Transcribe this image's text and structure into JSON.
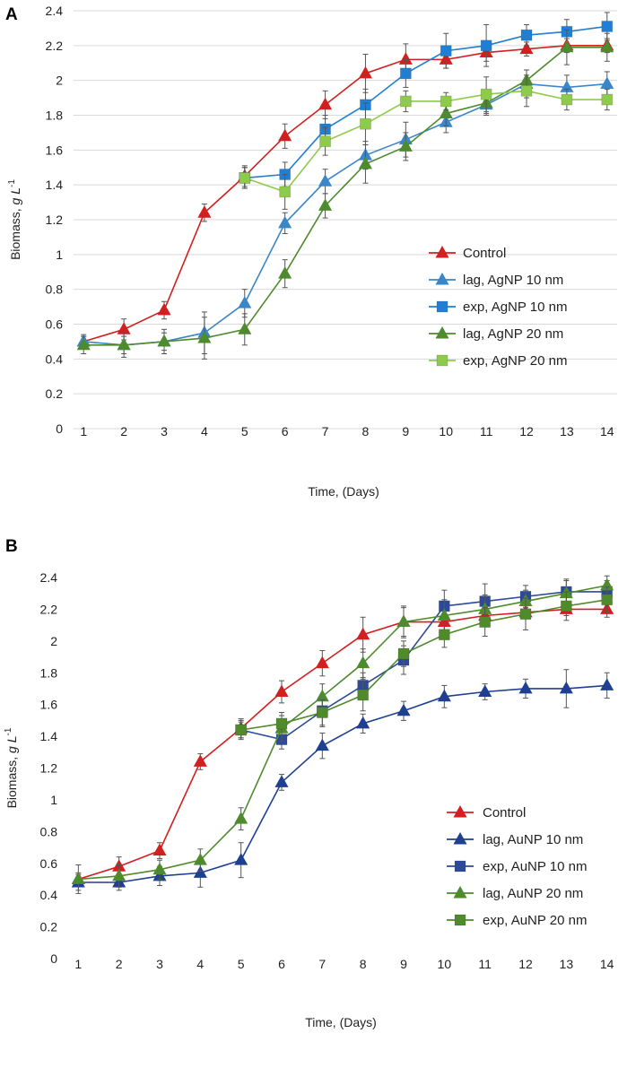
{
  "chart_data": [
    {
      "panel": "A",
      "type": "line",
      "xlabel": "Time, (Days)",
      "ylabel": "Biomass, g L-1",
      "ylabel_main": "Biomass, ",
      "ylabel_unit": "g L",
      "ylabel_exp": "-1",
      "ylim": [
        0,
        2.4
      ],
      "ystep": 0.2,
      "yticks": [
        "0",
        "0.2",
        "0.4",
        "0.6",
        "0.8",
        "1",
        "1.2",
        "1.4",
        "1.6",
        "1.8",
        "2",
        "2.2",
        "2.4"
      ],
      "xticks": [
        "1",
        "2",
        "3",
        "4",
        "5",
        "6",
        "7",
        "8",
        "9",
        "10",
        "11",
        "12",
        "13",
        "14"
      ],
      "grid": "horizontal",
      "legend_position": "right",
      "series": [
        {
          "name": "Control",
          "color": "#d21f1f",
          "marker": "triangle",
          "x": [
            1,
            2,
            3,
            4,
            5,
            6,
            7,
            8,
            9,
            10,
            11,
            12,
            13,
            14
          ],
          "values": [
            0.5,
            0.57,
            0.68,
            1.24,
            1.45,
            1.68,
            1.86,
            2.04,
            2.12,
            2.12,
            2.16,
            2.18,
            2.2,
            2.2
          ],
          "err": [
            0.04,
            0.06,
            0.05,
            0.05,
            0.06,
            0.07,
            0.08,
            0.11,
            0.09,
            0.05,
            0.05,
            0.04,
            0.04,
            0.04
          ]
        },
        {
          "name": "lag, AgNP 10 nm",
          "color": "#3a86c8",
          "marker": "triangle",
          "x": [
            1,
            2,
            3,
            4,
            5,
            6,
            7,
            8,
            9,
            10,
            11,
            12,
            13,
            14
          ],
          "values": [
            0.5,
            0.48,
            0.5,
            0.55,
            0.72,
            1.18,
            1.42,
            1.57,
            1.66,
            1.76,
            1.86,
            1.98,
            1.96,
            1.98
          ],
          "err": [
            0.03,
            0.05,
            0.05,
            0.12,
            0.08,
            0.06,
            0.07,
            0.08,
            0.1,
            0.06,
            0.05,
            0.08,
            0.07,
            0.07
          ]
        },
        {
          "name": "exp, AgNP 10 nm",
          "color": "#1f7fd4",
          "marker": "square",
          "x": [
            5,
            6,
            7,
            8,
            9,
            10,
            11,
            12,
            13,
            14
          ],
          "values": [
            1.44,
            1.46,
            1.72,
            1.86,
            2.04,
            2.17,
            2.2,
            2.26,
            2.28,
            2.31
          ],
          "err": [
            0.06,
            0.07,
            0.08,
            0.09,
            0.08,
            0.1,
            0.12,
            0.06,
            0.07,
            0.08
          ]
        },
        {
          "name": "lag, AgNP 20 nm",
          "color": "#4e8a2e",
          "marker": "triangle",
          "x": [
            1,
            2,
            3,
            4,
            5,
            6,
            7,
            8,
            9,
            10,
            11,
            12,
            13,
            14
          ],
          "values": [
            0.48,
            0.48,
            0.5,
            0.52,
            0.57,
            0.89,
            1.28,
            1.52,
            1.62,
            1.81,
            1.87,
            2.0,
            2.19,
            2.19
          ],
          "err": [
            0.05,
            0.07,
            0.07,
            0.12,
            0.09,
            0.08,
            0.07,
            0.11,
            0.08,
            0.07,
            0.07,
            0.06,
            0.1,
            0.08
          ]
        },
        {
          "name": "exp, AgNP 20 nm",
          "color": "#8ecb4a",
          "marker": "square",
          "x": [
            5,
            6,
            7,
            8,
            9,
            10,
            11,
            12,
            13,
            14
          ],
          "values": [
            1.44,
            1.36,
            1.65,
            1.75,
            1.88,
            1.88,
            1.92,
            1.94,
            1.89,
            1.89
          ],
          "err": [
            0.06,
            0.1,
            0.08,
            0.12,
            0.06,
            0.05,
            0.1,
            0.09,
            0.06,
            0.06
          ]
        }
      ]
    },
    {
      "panel": "B",
      "type": "line",
      "xlabel": "Time, (Days)",
      "ylabel": "Biomass, g L-1",
      "ylabel_main": "Biomass, ",
      "ylabel_unit": "g L",
      "ylabel_exp": "-1",
      "ylim": [
        0,
        2.4
      ],
      "ystep": 0.2,
      "yticks": [
        "0",
        "0.2",
        "0.4",
        "0.6",
        "0.8",
        "1",
        "1.2",
        "1.4",
        "1.6",
        "1.8",
        "2",
        "2.2",
        "2.4"
      ],
      "xticks": [
        "1",
        "2",
        "3",
        "4",
        "5",
        "6",
        "7",
        "8",
        "9",
        "10",
        "11",
        "12",
        "13",
        "14"
      ],
      "grid": "none",
      "legend_position": "right",
      "series": [
        {
          "name": "Control",
          "color": "#d21f1f",
          "marker": "triangle",
          "x": [
            1,
            2,
            3,
            4,
            5,
            6,
            7,
            8,
            9,
            10,
            11,
            12,
            13,
            14
          ],
          "values": [
            0.5,
            0.58,
            0.68,
            1.24,
            1.45,
            1.68,
            1.86,
            2.04,
            2.12,
            2.12,
            2.16,
            2.18,
            2.2,
            2.2
          ],
          "err": [
            0.04,
            0.06,
            0.05,
            0.05,
            0.06,
            0.07,
            0.08,
            0.11,
            0.09,
            0.05,
            0.05,
            0.04,
            0.04,
            0.05
          ]
        },
        {
          "name": "lag, AuNP 10 nm",
          "color": "#1f3f91",
          "marker": "triangle",
          "x": [
            1,
            2,
            3,
            4,
            5,
            6,
            7,
            8,
            9,
            10,
            11,
            12,
            13,
            14
          ],
          "values": [
            0.48,
            0.48,
            0.52,
            0.54,
            0.62,
            1.11,
            1.34,
            1.48,
            1.56,
            1.65,
            1.68,
            1.7,
            1.7,
            1.72
          ],
          "err": [
            0.05,
            0.05,
            0.06,
            0.09,
            0.11,
            0.05,
            0.08,
            0.06,
            0.06,
            0.07,
            0.05,
            0.06,
            0.12,
            0.08
          ]
        },
        {
          "name": "exp, AuNP 10 nm",
          "color": "#2c4a99",
          "marker": "square",
          "x": [
            5,
            6,
            7,
            8,
            9,
            10,
            11,
            12,
            13,
            14
          ],
          "values": [
            1.44,
            1.38,
            1.56,
            1.72,
            1.88,
            2.22,
            2.25,
            2.28,
            2.31,
            2.31
          ],
          "err": [
            0.05,
            0.06,
            0.1,
            0.08,
            0.09,
            0.1,
            0.11,
            0.07,
            0.08,
            0.07
          ]
        },
        {
          "name": "lag, AuNP 20 nm",
          "color": "#4e8a2e",
          "marker": "triangle",
          "x": [
            1,
            2,
            3,
            4,
            5,
            6,
            7,
            8,
            9,
            10,
            11,
            12,
            13,
            14
          ],
          "values": [
            0.5,
            0.52,
            0.56,
            0.62,
            0.88,
            1.45,
            1.65,
            1.86,
            2.12,
            2.16,
            2.2,
            2.25,
            2.3,
            2.35
          ],
          "err": [
            0.09,
            0.07,
            0.06,
            0.07,
            0.07,
            0.08,
            0.08,
            0.09,
            0.1,
            0.1,
            0.09,
            0.07,
            0.08,
            0.06
          ]
        },
        {
          "name": "exp, AuNP 20 nm",
          "color": "#4f8a2b",
          "marker": "square",
          "x": [
            5,
            6,
            7,
            8,
            9,
            10,
            11,
            12,
            13,
            14
          ],
          "values": [
            1.44,
            1.48,
            1.55,
            1.66,
            1.92,
            2.04,
            2.12,
            2.17,
            2.22,
            2.26
          ],
          "err": [
            0.06,
            0.07,
            0.08,
            0.1,
            0.08,
            0.08,
            0.09,
            0.1,
            0.09,
            0.08
          ]
        }
      ]
    }
  ]
}
